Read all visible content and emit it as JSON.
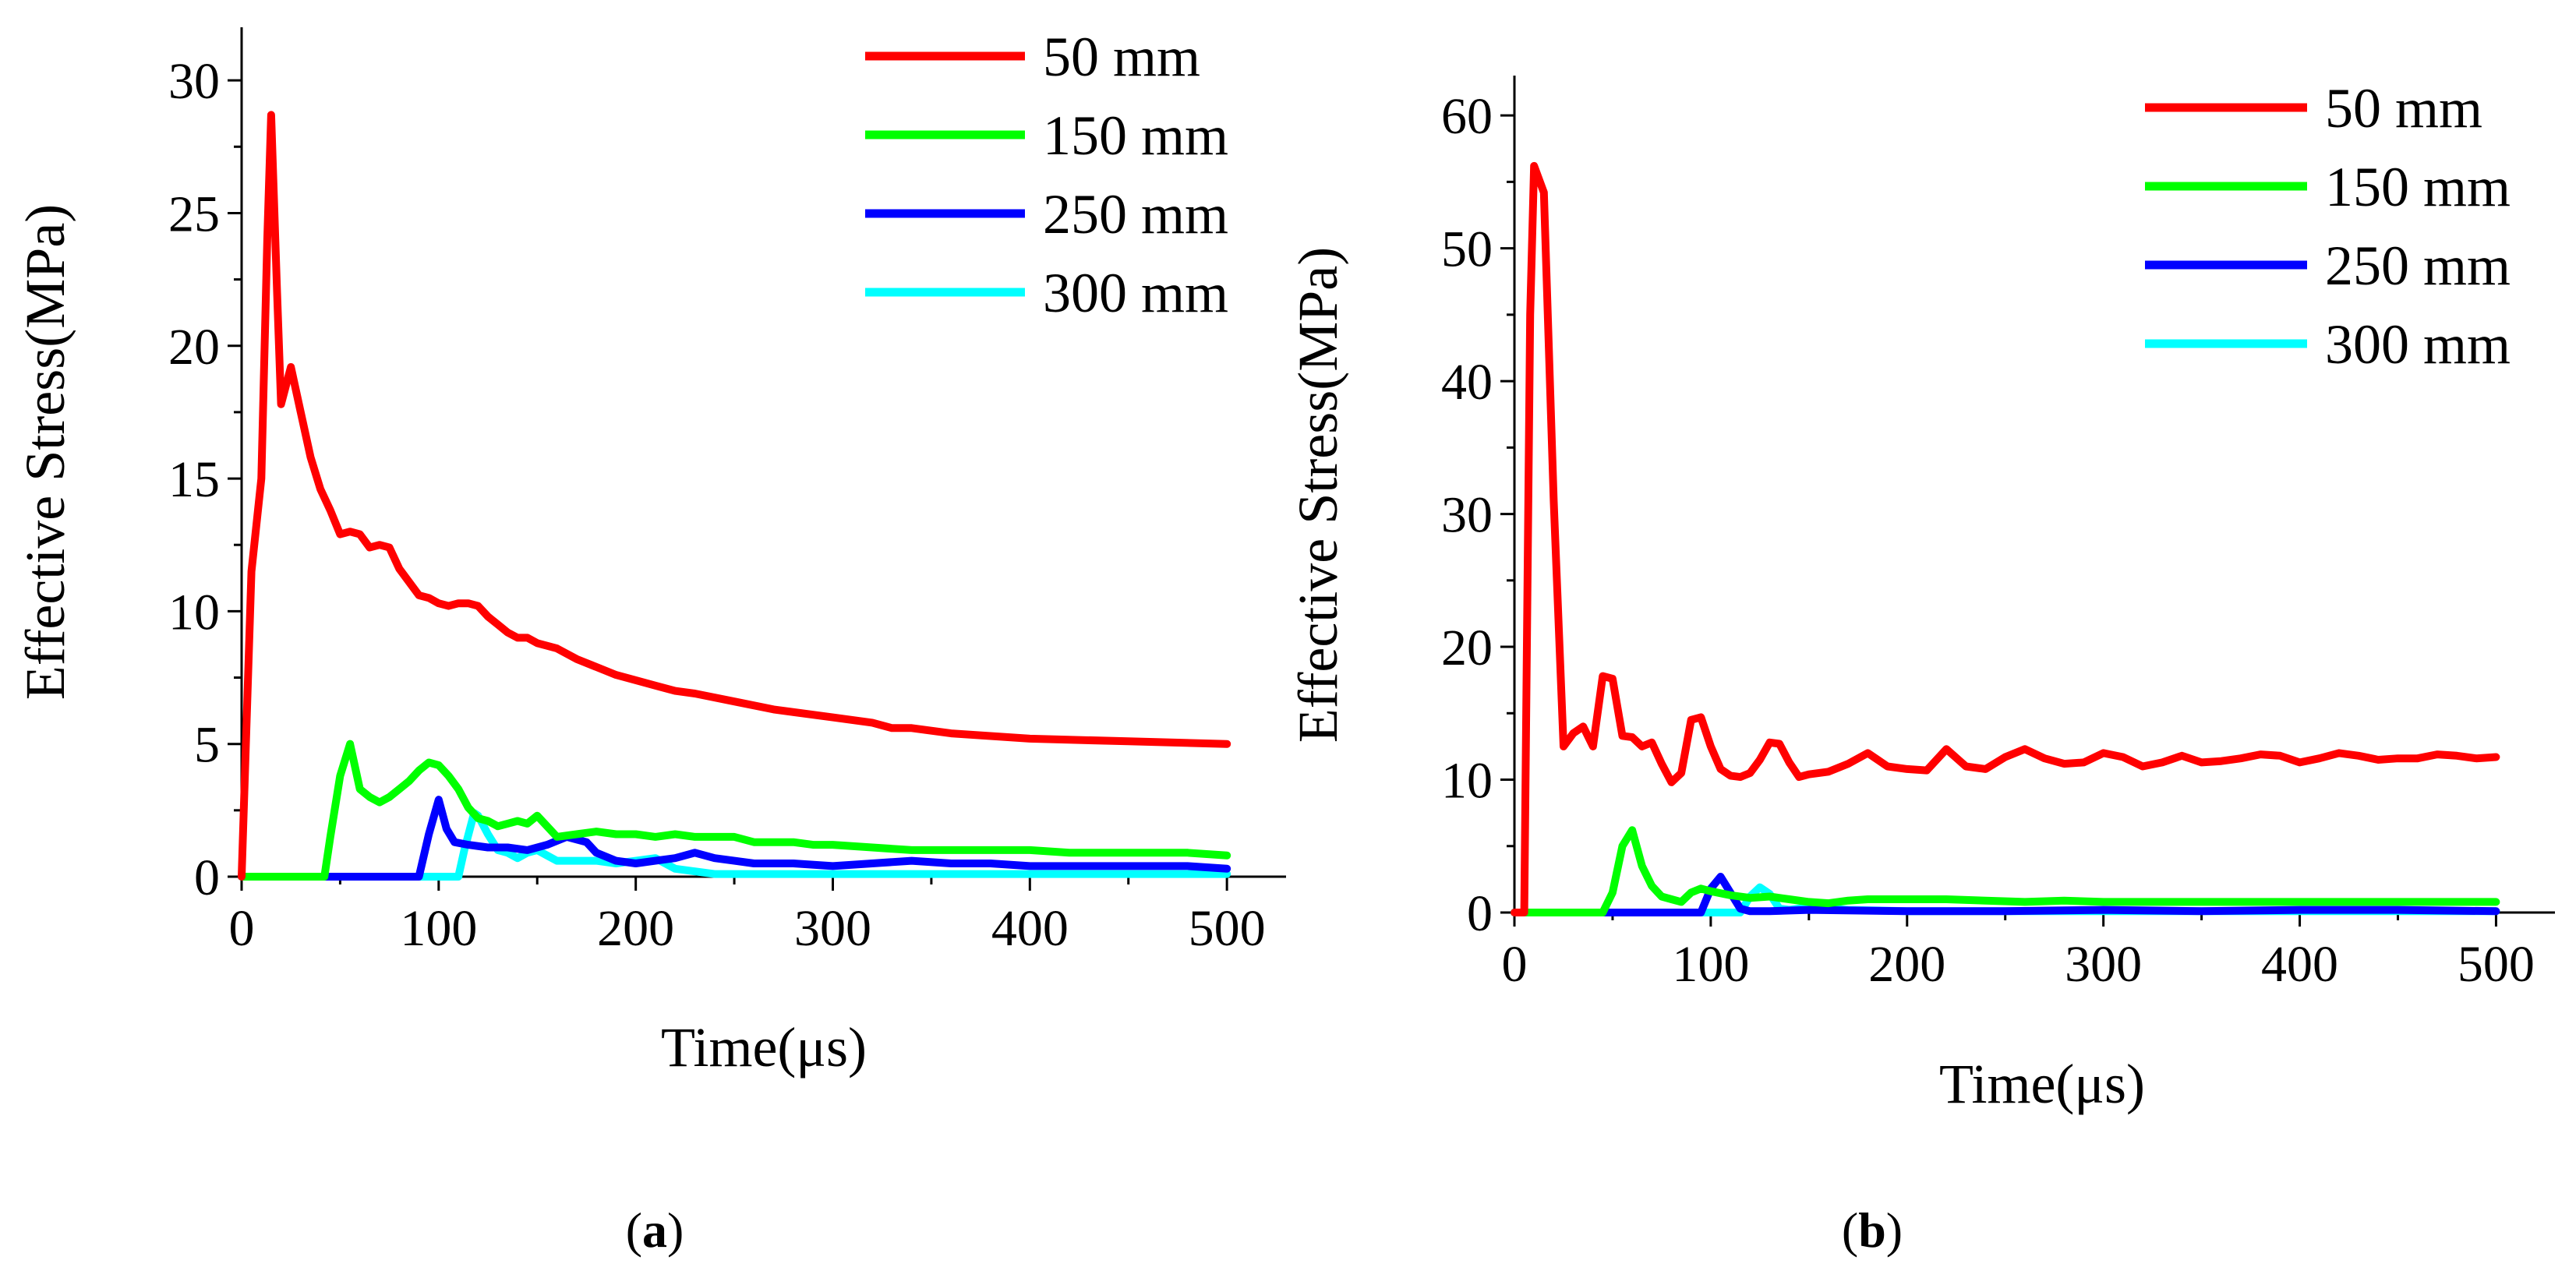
{
  "chart_data": [
    {
      "type": "line",
      "id": "a",
      "panel_label": {
        "prefix": "(",
        "letter": "a",
        "suffix": ")"
      },
      "xlabel": "Time(μs)",
      "ylabel": "Effective Stress(MPa)",
      "xlim": [
        0,
        530
      ],
      "ylim": [
        0,
        32
      ],
      "xticks": [
        0,
        100,
        200,
        300,
        400,
        500
      ],
      "yticks": [
        0,
        5,
        10,
        15,
        20,
        25,
        30
      ],
      "legend_position": "top-right",
      "series": [
        {
          "name": "50 mm",
          "color": "#ff0000",
          "x": [
            0,
            5,
            10,
            13,
            15,
            18,
            20,
            25,
            30,
            35,
            40,
            45,
            50,
            55,
            60,
            65,
            70,
            75,
            80,
            85,
            90,
            95,
            100,
            105,
            110,
            115,
            120,
            125,
            130,
            135,
            140,
            145,
            150,
            155,
            160,
            170,
            180,
            190,
            200,
            210,
            220,
            230,
            250,
            270,
            300,
            320,
            330,
            340,
            360,
            380,
            400,
            450,
            500
          ],
          "y": [
            0,
            11.5,
            15,
            24,
            28.7,
            22,
            17.8,
            19.2,
            17.5,
            15.8,
            14.6,
            13.8,
            12.9,
            13,
            12.9,
            12.4,
            12.5,
            12.4,
            11.6,
            11.1,
            10.6,
            10.5,
            10.3,
            10.2,
            10.3,
            10.3,
            10.2,
            9.8,
            9.5,
            9.2,
            9.0,
            9.0,
            8.8,
            8.7,
            8.6,
            8.2,
            7.9,
            7.6,
            7.4,
            7.2,
            7.0,
            6.9,
            6.6,
            6.3,
            6.0,
            5.8,
            5.6,
            5.6,
            5.4,
            5.3,
            5.2,
            5.1,
            5.0
          ]
        },
        {
          "name": "150 mm",
          "color": "#00ff00",
          "x": [
            0,
            42,
            45,
            50,
            55,
            60,
            65,
            70,
            75,
            80,
            85,
            90,
            95,
            100,
            105,
            110,
            115,
            120,
            125,
            130,
            135,
            140,
            145,
            150,
            155,
            160,
            170,
            180,
            190,
            200,
            210,
            220,
            230,
            240,
            250,
            260,
            270,
            280,
            290,
            300,
            320,
            340,
            360,
            380,
            400,
            420,
            440,
            460,
            480,
            500
          ],
          "y": [
            0,
            0,
            1.5,
            3.8,
            5.0,
            3.3,
            3.0,
            2.8,
            3.0,
            3.3,
            3.6,
            4.0,
            4.3,
            4.2,
            3.8,
            3.3,
            2.6,
            2.2,
            2.1,
            1.9,
            2.0,
            2.1,
            2.0,
            2.3,
            1.9,
            1.5,
            1.6,
            1.7,
            1.6,
            1.6,
            1.5,
            1.6,
            1.5,
            1.5,
            1.5,
            1.3,
            1.3,
            1.3,
            1.2,
            1.2,
            1.1,
            1.0,
            1.0,
            1.0,
            1.0,
            0.9,
            0.9,
            0.9,
            0.9,
            0.8
          ]
        },
        {
          "name": "250 mm",
          "color": "#0000ff",
          "x": [
            0,
            90,
            95,
            100,
            104,
            108,
            115,
            125,
            135,
            145,
            155,
            165,
            170,
            175,
            180,
            190,
            200,
            210,
            220,
            230,
            240,
            250,
            260,
            280,
            300,
            320,
            340,
            360,
            380,
            400,
            420,
            440,
            460,
            480,
            500
          ],
          "y": [
            0,
            0,
            1.6,
            2.9,
            1.8,
            1.3,
            1.2,
            1.1,
            1.1,
            1.0,
            1.2,
            1.5,
            1.4,
            1.3,
            0.9,
            0.6,
            0.5,
            0.6,
            0.7,
            0.9,
            0.7,
            0.6,
            0.5,
            0.5,
            0.4,
            0.5,
            0.6,
            0.5,
            0.5,
            0.4,
            0.4,
            0.4,
            0.4,
            0.4,
            0.3
          ]
        },
        {
          "name": "300 mm",
          "color": "#00ffff",
          "x": [
            0,
            110,
            113,
            118,
            120,
            125,
            130,
            135,
            140,
            145,
            150,
            155,
            160,
            170,
            180,
            190,
            200,
            210,
            220,
            230,
            240,
            260,
            280,
            300,
            320,
            340,
            360,
            380,
            400,
            420,
            440,
            460,
            480,
            500
          ],
          "y": [
            0,
            0,
            1.0,
            2.4,
            2.3,
            1.6,
            1.0,
            0.9,
            0.7,
            0.9,
            1.0,
            0.8,
            0.6,
            0.6,
            0.6,
            0.5,
            0.6,
            0.7,
            0.3,
            0.2,
            0.1,
            0.1,
            0.1,
            0.1,
            0.1,
            0.1,
            0.1,
            0.1,
            0.1,
            0.1,
            0.1,
            0.1,
            0.1,
            0.1
          ]
        }
      ]
    },
    {
      "type": "line",
      "id": "b",
      "panel_label": {
        "prefix": "(",
        "letter": "b",
        "suffix": ")"
      },
      "xlabel": "Time(μs)",
      "ylabel": "Effective Stress(MPa)",
      "xlim": [
        0,
        530
      ],
      "ylim": [
        0,
        63
      ],
      "xticks": [
        0,
        100,
        200,
        300,
        400,
        500
      ],
      "yticks": [
        0,
        10,
        20,
        30,
        40,
        50,
        60
      ],
      "legend_position": "top-right",
      "series": [
        {
          "name": "50 mm",
          "color": "#ff0000",
          "x": [
            0,
            5,
            8,
            10,
            15,
            20,
            25,
            30,
            35,
            40,
            45,
            50,
            55,
            60,
            65,
            70,
            75,
            80,
            85,
            90,
            95,
            100,
            105,
            110,
            115,
            120,
            125,
            130,
            135,
            140,
            145,
            150,
            160,
            170,
            180,
            190,
            200,
            210,
            220,
            230,
            240,
            250,
            260,
            270,
            280,
            290,
            300,
            310,
            320,
            330,
            340,
            350,
            360,
            370,
            380,
            390,
            400,
            410,
            420,
            430,
            440,
            450,
            460,
            470,
            480,
            490,
            500
          ],
          "y": [
            0,
            0,
            45,
            56.2,
            54.2,
            31,
            12.5,
            13.5,
            14.0,
            12.5,
            17.8,
            17.6,
            13.3,
            13.2,
            12.5,
            12.8,
            11.2,
            9.8,
            10.5,
            14.5,
            14.7,
            12.5,
            10.8,
            10.3,
            10.2,
            10.5,
            11.5,
            12.8,
            12.7,
            11.3,
            10.2,
            10.4,
            10.6,
            11.2,
            12.0,
            11.0,
            10.8,
            10.7,
            12.3,
            11.0,
            10.8,
            11.7,
            12.3,
            11.6,
            11.2,
            11.3,
            12.0,
            11.7,
            11.0,
            11.3,
            11.8,
            11.3,
            11.4,
            11.6,
            11.9,
            11.8,
            11.3,
            11.6,
            12.0,
            11.8,
            11.5,
            11.6,
            11.6,
            11.9,
            11.8,
            11.6,
            11.7
          ]
        },
        {
          "name": "150 mm",
          "color": "#00ff00",
          "x": [
            0,
            45,
            50,
            55,
            60,
            65,
            70,
            75,
            80,
            85,
            90,
            95,
            100,
            110,
            120,
            130,
            140,
            150,
            160,
            170,
            180,
            200,
            220,
            240,
            260,
            280,
            300,
            320,
            340,
            360,
            380,
            400,
            420,
            440,
            460,
            480,
            500
          ],
          "y": [
            0,
            0,
            1.5,
            5.0,
            6.2,
            3.5,
            2.0,
            1.2,
            1.0,
            0.8,
            1.5,
            1.8,
            1.6,
            1.3,
            1.1,
            1.2,
            1.0,
            0.8,
            0.7,
            0.9,
            1.0,
            1.0,
            1.0,
            0.9,
            0.8,
            0.9,
            0.8,
            0.8,
            0.8,
            0.8,
            0.8,
            0.8,
            0.8,
            0.8,
            0.8,
            0.8,
            0.8
          ]
        },
        {
          "name": "250 mm",
          "color": "#0000ff",
          "x": [
            0,
            95,
            100,
            105,
            110,
            115,
            120,
            130,
            150,
            200,
            250,
            300,
            350,
            400,
            450,
            500
          ],
          "y": [
            0,
            0,
            1.8,
            2.7,
            1.5,
            0.3,
            0.1,
            0.1,
            0.2,
            0.1,
            0.1,
            0.2,
            0.1,
            0.2,
            0.2,
            0.1
          ]
        },
        {
          "name": "300 mm",
          "color": "#00ffff",
          "x": [
            0,
            115,
            120,
            125,
            130,
            135,
            140,
            150,
            170,
            200,
            250,
            300,
            350,
            400,
            450,
            500
          ],
          "y": [
            0,
            0,
            1.2,
            1.9,
            1.4,
            0.3,
            0.2,
            0.4,
            0.2,
            0.1,
            0.1,
            0.1,
            0.1,
            0.1,
            0.1,
            0.1
          ]
        }
      ]
    }
  ]
}
